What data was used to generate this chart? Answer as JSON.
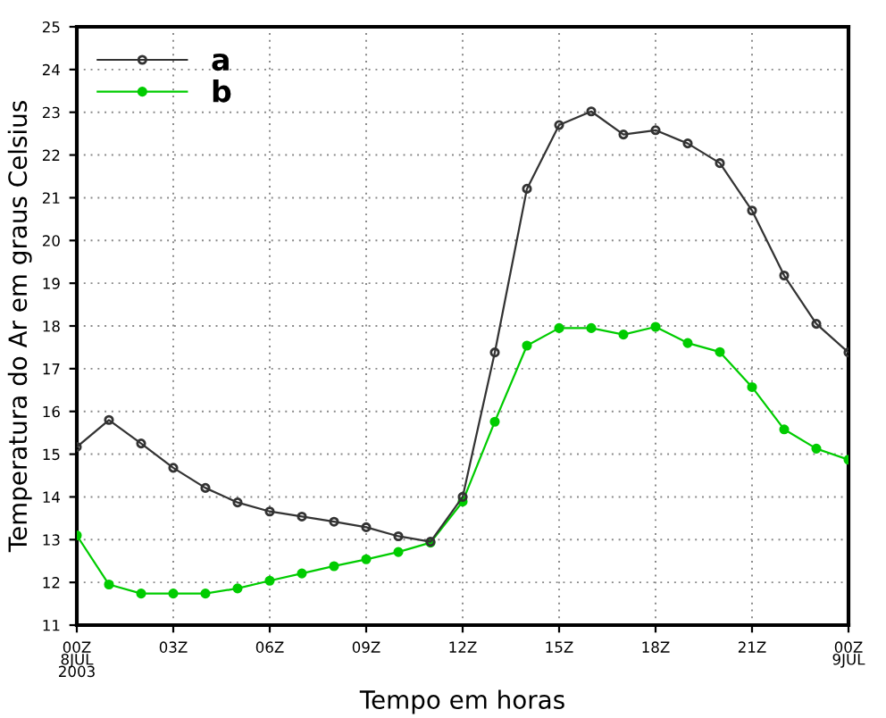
{
  "chart_data": {
    "type": "line",
    "xlabel": "Tempo em horas",
    "ylabel": "Temperatura do Ar em graus Celsius",
    "x": [
      0,
      1,
      2,
      3,
      4,
      5,
      6,
      7,
      8,
      9,
      10,
      11,
      12,
      13,
      14,
      15,
      16,
      17,
      18,
      19,
      20,
      21,
      22,
      23,
      24
    ],
    "series": [
      {
        "name": "a",
        "color": "#333333",
        "values": [
          15.17,
          15.8,
          15.25,
          14.68,
          14.21,
          13.87,
          13.66,
          13.54,
          13.42,
          13.29,
          13.08,
          12.95,
          14.0,
          17.38,
          21.21,
          22.7,
          23.02,
          22.48,
          22.58,
          22.27,
          21.81,
          20.7,
          19.18,
          18.05,
          17.38
        ]
      },
      {
        "name": "b",
        "color": "#00cc00",
        "values": [
          13.1,
          11.95,
          11.74,
          11.74,
          11.74,
          11.86,
          12.04,
          12.21,
          12.38,
          12.54,
          12.71,
          12.93,
          13.89,
          15.76,
          17.54,
          17.95,
          17.95,
          17.8,
          17.98,
          17.6,
          17.39,
          16.57,
          15.58,
          15.13,
          14.87
        ]
      }
    ],
    "xlim": [
      0,
      24
    ],
    "xticks": [
      {
        "value": 0,
        "label": "00Z\n8JUL\n2003"
      },
      {
        "value": 3,
        "label": "03Z"
      },
      {
        "value": 6,
        "label": "06Z"
      },
      {
        "value": 9,
        "label": "09Z"
      },
      {
        "value": 12,
        "label": "12Z"
      },
      {
        "value": 15,
        "label": "15Z"
      },
      {
        "value": 18,
        "label": "18Z"
      },
      {
        "value": 21,
        "label": "21Z"
      },
      {
        "value": 24,
        "label": "00Z\n9JUL"
      }
    ],
    "ylim": [
      11,
      25
    ],
    "yticks": [
      11,
      12,
      13,
      14,
      15,
      16,
      17,
      18,
      19,
      20,
      21,
      22,
      23,
      24,
      25
    ],
    "grid": true,
    "legend": "top left",
    "marker": "circle",
    "line_style": "solid"
  }
}
